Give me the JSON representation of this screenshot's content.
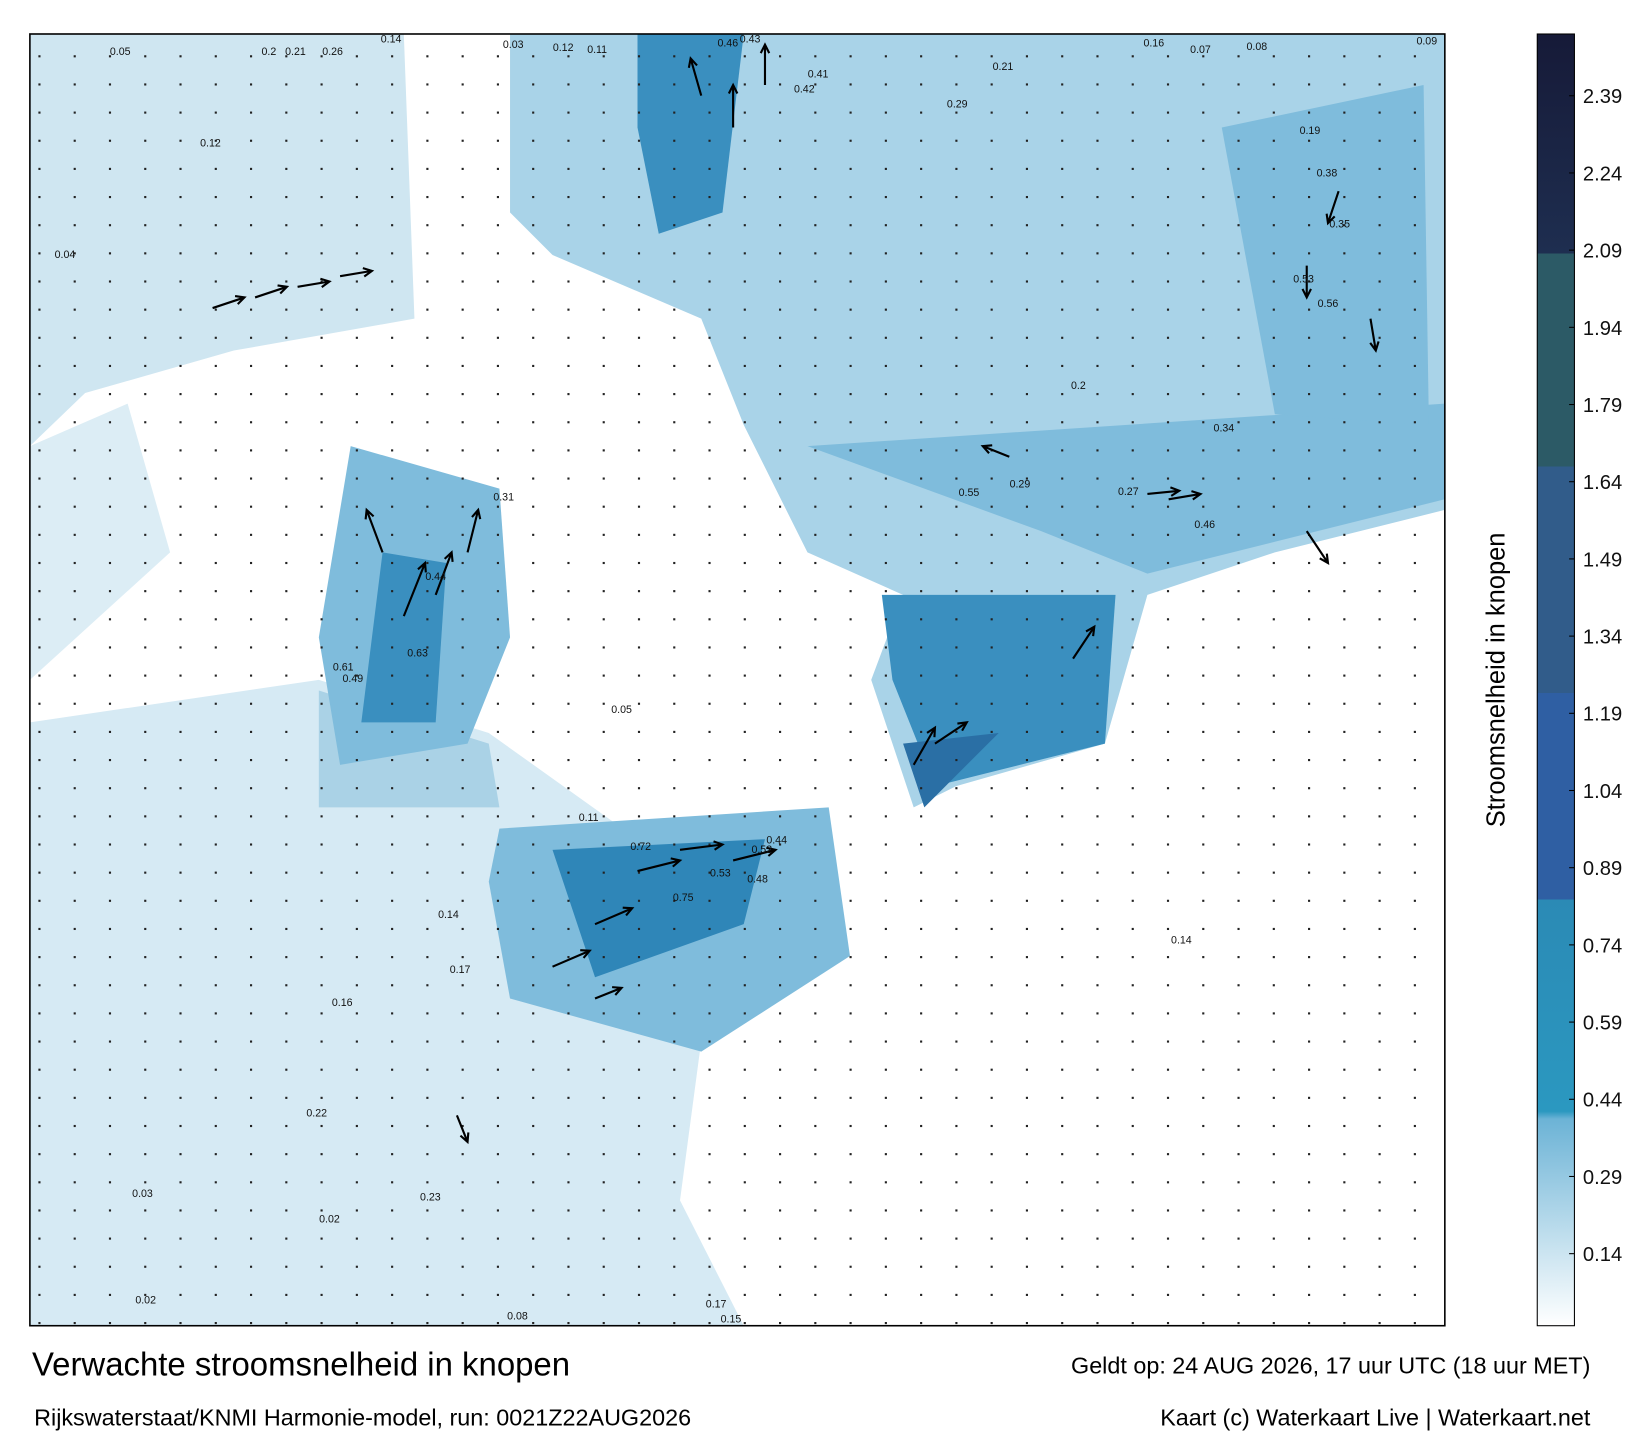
{
  "chart_data": {
    "type": "colorbar",
    "ylabel": "Stroomsnelheid in knopen",
    "ylim": [
      0,
      2.51
    ],
    "yticks": [
      0.14,
      0.29,
      0.44,
      0.59,
      0.74,
      0.89,
      1.04,
      1.19,
      1.34,
      1.49,
      1.64,
      1.79,
      1.94,
      2.09,
      2.24,
      2.39
    ]
  },
  "footer": {
    "title": "Verwachte stroomsnelheid in knopen",
    "valid": "Geldt op: 24 AUG 2026, 17 uur UTC (18 uur MET)",
    "model": "Rijkswaterstaat/KNMI Harmonie-model, run: 0021Z22AUG2026",
    "credit": "Kaart (c) Waterkaart Live | Waterkaart.net"
  },
  "map": {
    "labels": [
      0.05,
      0.2,
      0.21,
      0.26,
      0.14,
      0.03,
      0.12,
      0.11,
      0.46,
      0.43,
      0.41,
      0.42,
      0.21,
      0.29,
      0.16,
      0.07,
      0.08,
      0.09,
      0.19,
      0.38,
      0.56,
      0.53,
      0.35,
      0.55,
      0.29,
      0.27,
      0.34,
      0.46,
      0.2,
      0.31,
      0.44,
      0.63,
      0.61,
      0.49,
      0.72,
      0.75,
      0.53,
      0.48,
      0.52,
      0.44,
      0.05,
      0.11,
      0.14,
      0.17,
      0.16,
      0.22,
      0.23,
      0.02,
      0.03,
      0.02,
      0.08,
      0.17,
      0.15,
      0.04,
      0.12,
      0.14
    ]
  }
}
